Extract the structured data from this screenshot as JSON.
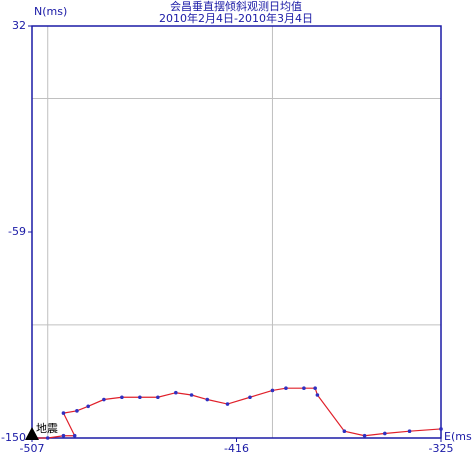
{
  "chart_data": {
    "type": "line",
    "title": "会昌垂直摆倾斜观测日均值",
    "subtitle": "2010年2月4日-2010年3月4日",
    "x_label": "E(ms)",
    "y_label": "N(ms)",
    "annotation": "地震",
    "x": [
      -507,
      -500,
      -493,
      -488,
      -493,
      -487,
      -482,
      -475,
      -467,
      -459,
      -451,
      -443,
      -436,
      -429,
      -420,
      -410,
      -400,
      -394,
      -386,
      -381,
      -380,
      -368,
      -359,
      -350,
      -339,
      -325
    ],
    "values": [
      -150,
      -150,
      -149,
      -149,
      -139,
      -138,
      -136,
      -133,
      -132,
      -132,
      -132,
      -130,
      -131,
      -133,
      -135,
      -132,
      -129,
      -128,
      -128,
      -128,
      -131,
      -147,
      -149,
      -148,
      -147,
      -146
    ],
    "line_color": "#e0202a",
    "marker_color": "#3030c0",
    "xlim": [
      -507,
      -325
    ],
    "ylim": [
      -150,
      32
    ],
    "xticks": [
      -507,
      -416,
      -325
    ],
    "yticks": [
      -150,
      -59,
      32
    ],
    "xgrid": [
      -500,
      -400
    ],
    "ygrid": [
      -100,
      0
    ]
  }
}
